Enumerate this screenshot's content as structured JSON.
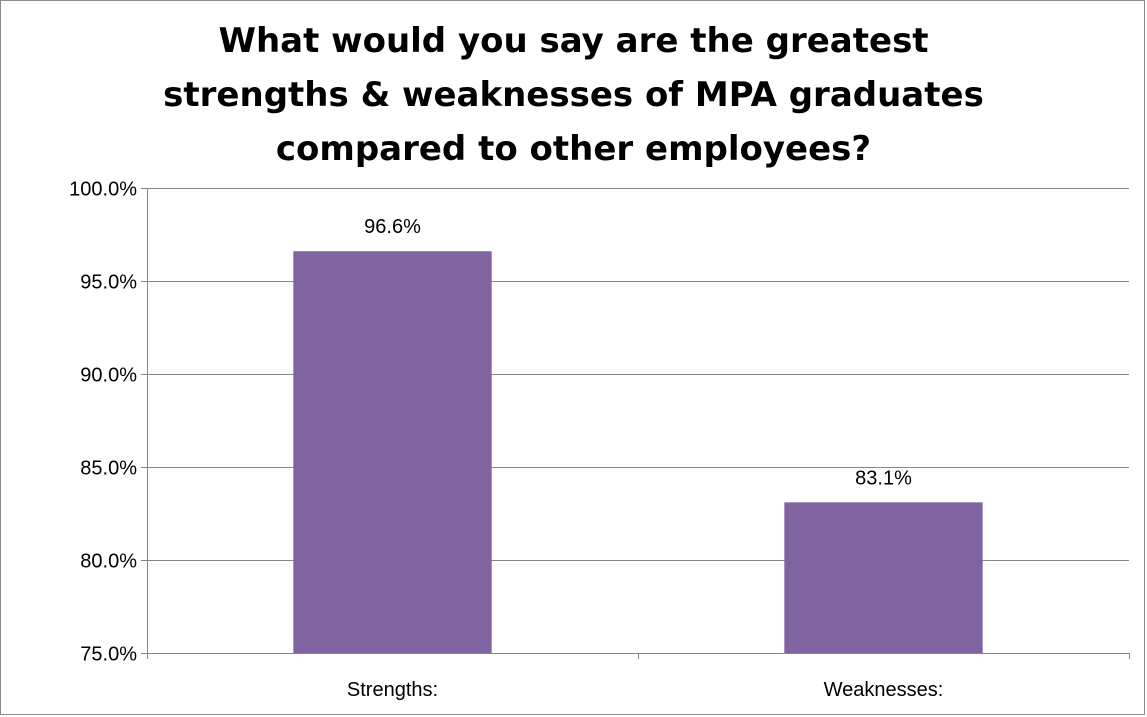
{
  "chart_data": {
    "type": "bar",
    "title_lines": [
      "What would you say are the greatest",
      "strengths & weaknesses of MPA graduates",
      "compared to other employees?"
    ],
    "categories": [
      "Strengths:",
      "Weaknesses:"
    ],
    "values": [
      96.6,
      83.1
    ],
    "data_labels": [
      "96.6%",
      "83.1%"
    ],
    "ylim": [
      75.0,
      100.0
    ],
    "yticks": [
      75.0,
      80.0,
      85.0,
      90.0,
      95.0,
      100.0
    ],
    "ytick_labels": [
      "75.0%",
      "80.0%",
      "85.0%",
      "90.0%",
      "95.0%",
      "100.0%"
    ],
    "grid": "horizontal",
    "legend": "none",
    "colors": {
      "bar": "#8064a2",
      "grid": "#868686",
      "axis": "#868686",
      "text": "#000000"
    }
  }
}
